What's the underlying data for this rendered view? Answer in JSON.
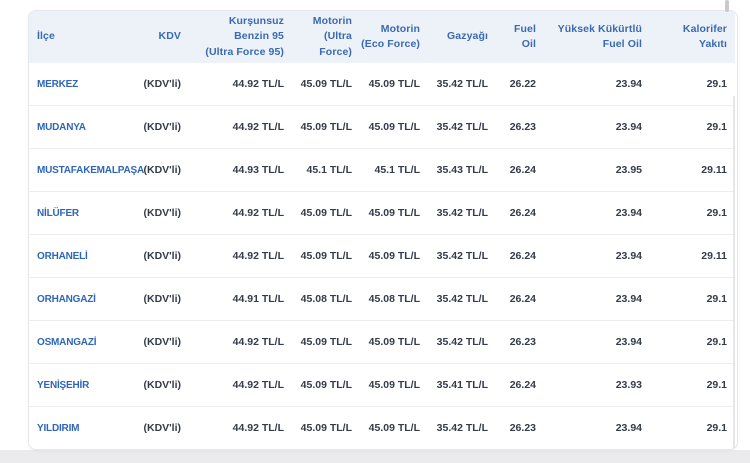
{
  "page": {
    "background_color": "#ebebed",
    "panel_color": "#ffffff"
  },
  "colors": {
    "header_bg": "#edf1f8",
    "header_text": "#3a6ab3",
    "district_text": "#2f66b8",
    "value_text": "#343b49",
    "row_border": "#ededf1",
    "card_border": "#e7e7ec",
    "scrollbar_thumb": "#c9c9ce",
    "scrollbar_track": "#e6e6ea"
  },
  "table": {
    "columns": [
      {
        "id": "ilce",
        "label": "İlçe",
        "lines": [
          "İlçe"
        ],
        "align": "left"
      },
      {
        "id": "kdv",
        "label": "KDV",
        "lines": [
          "KDV"
        ],
        "align": "right"
      },
      {
        "id": "benzin95",
        "label": "Kurşunsuz Benzin 95 (Ultra Force 95)",
        "lines": [
          "Kurşunsuz",
          "Benzin 95",
          "(Ultra Force 95)"
        ],
        "align": "right"
      },
      {
        "id": "motorin_ultra",
        "label": "Motorin (Ultra Force)",
        "lines": [
          "Motorin",
          "(Ultra",
          "Force)"
        ],
        "align": "right"
      },
      {
        "id": "motorin_eco",
        "label": "Motorin (Eco Force)",
        "lines": [
          "Motorin",
          "(Eco Force)"
        ],
        "align": "right"
      },
      {
        "id": "gazyagi",
        "label": "Gazyağı",
        "lines": [
          "Gazyağı"
        ],
        "align": "right"
      },
      {
        "id": "fuel_oil",
        "label": "Fuel Oil",
        "lines": [
          "Fuel",
          "Oil"
        ],
        "align": "right"
      },
      {
        "id": "yuksek_kukurtlu",
        "label": "Yüksek Kükürtlü Fuel Oil",
        "lines": [
          "Yüksek Kükürtlü",
          "Fuel Oil"
        ],
        "align": "right"
      },
      {
        "id": "kalorifer",
        "label": "Kalorifer Yakıtı",
        "lines": [
          "Kalorifer",
          "Yakıtı"
        ],
        "align": "right"
      }
    ],
    "rows": [
      {
        "ilce": "MERKEZ",
        "kdv": "(KDV'li)",
        "benzin95": "44.92 TL/L",
        "motorin_ultra": "45.09 TL/L",
        "motorin_eco": "45.09 TL/L",
        "gazyagi": "35.42 TL/L",
        "fuel_oil": "26.22",
        "yuksek_kukurtlu": "23.94",
        "kalorifer": "29.1"
      },
      {
        "ilce": "MUDANYA",
        "kdv": "(KDV'li)",
        "benzin95": "44.92 TL/L",
        "motorin_ultra": "45.09 TL/L",
        "motorin_eco": "45.09 TL/L",
        "gazyagi": "35.42 TL/L",
        "fuel_oil": "26.23",
        "yuksek_kukurtlu": "23.94",
        "kalorifer": "29.1"
      },
      {
        "ilce": "MUSTAFAKEMALPAŞA",
        "kdv": "(KDV'li)",
        "benzin95": "44.93 TL/L",
        "motorin_ultra": "45.1 TL/L",
        "motorin_eco": "45.1 TL/L",
        "gazyagi": "35.43 TL/L",
        "fuel_oil": "26.24",
        "yuksek_kukurtlu": "23.95",
        "kalorifer": "29.11"
      },
      {
        "ilce": "NİLÜFER",
        "kdv": "(KDV'li)",
        "benzin95": "44.92 TL/L",
        "motorin_ultra": "45.09 TL/L",
        "motorin_eco": "45.09 TL/L",
        "gazyagi": "35.42 TL/L",
        "fuel_oil": "26.24",
        "yuksek_kukurtlu": "23.94",
        "kalorifer": "29.1"
      },
      {
        "ilce": "ORHANELİ",
        "kdv": "(KDV'li)",
        "benzin95": "44.92 TL/L",
        "motorin_ultra": "45.09 TL/L",
        "motorin_eco": "45.09 TL/L",
        "gazyagi": "35.42 TL/L",
        "fuel_oil": "26.24",
        "yuksek_kukurtlu": "23.94",
        "kalorifer": "29.11"
      },
      {
        "ilce": "ORHANGAZİ",
        "kdv": "(KDV'li)",
        "benzin95": "44.91 TL/L",
        "motorin_ultra": "45.08 TL/L",
        "motorin_eco": "45.08 TL/L",
        "gazyagi": "35.42 TL/L",
        "fuel_oil": "26.24",
        "yuksek_kukurtlu": "23.94",
        "kalorifer": "29.1"
      },
      {
        "ilce": "OSMANGAZİ",
        "kdv": "(KDV'li)",
        "benzin95": "44.92 TL/L",
        "motorin_ultra": "45.09 TL/L",
        "motorin_eco": "45.09 TL/L",
        "gazyagi": "35.42 TL/L",
        "fuel_oil": "26.23",
        "yuksek_kukurtlu": "23.94",
        "kalorifer": "29.1"
      },
      {
        "ilce": "YENİŞEHİR",
        "kdv": "(KDV'li)",
        "benzin95": "44.92 TL/L",
        "motorin_ultra": "45.09 TL/L",
        "motorin_eco": "45.09 TL/L",
        "gazyagi": "35.41 TL/L",
        "fuel_oil": "26.24",
        "yuksek_kukurtlu": "23.93",
        "kalorifer": "29.1"
      },
      {
        "ilce": "YILDIRIM",
        "kdv": "(KDV'li)",
        "benzin95": "44.92 TL/L",
        "motorin_ultra": "45.09 TL/L",
        "motorin_eco": "45.09 TL/L",
        "gazyagi": "35.42 TL/L",
        "fuel_oil": "26.23",
        "yuksek_kukurtlu": "23.94",
        "kalorifer": "29.1"
      }
    ]
  }
}
